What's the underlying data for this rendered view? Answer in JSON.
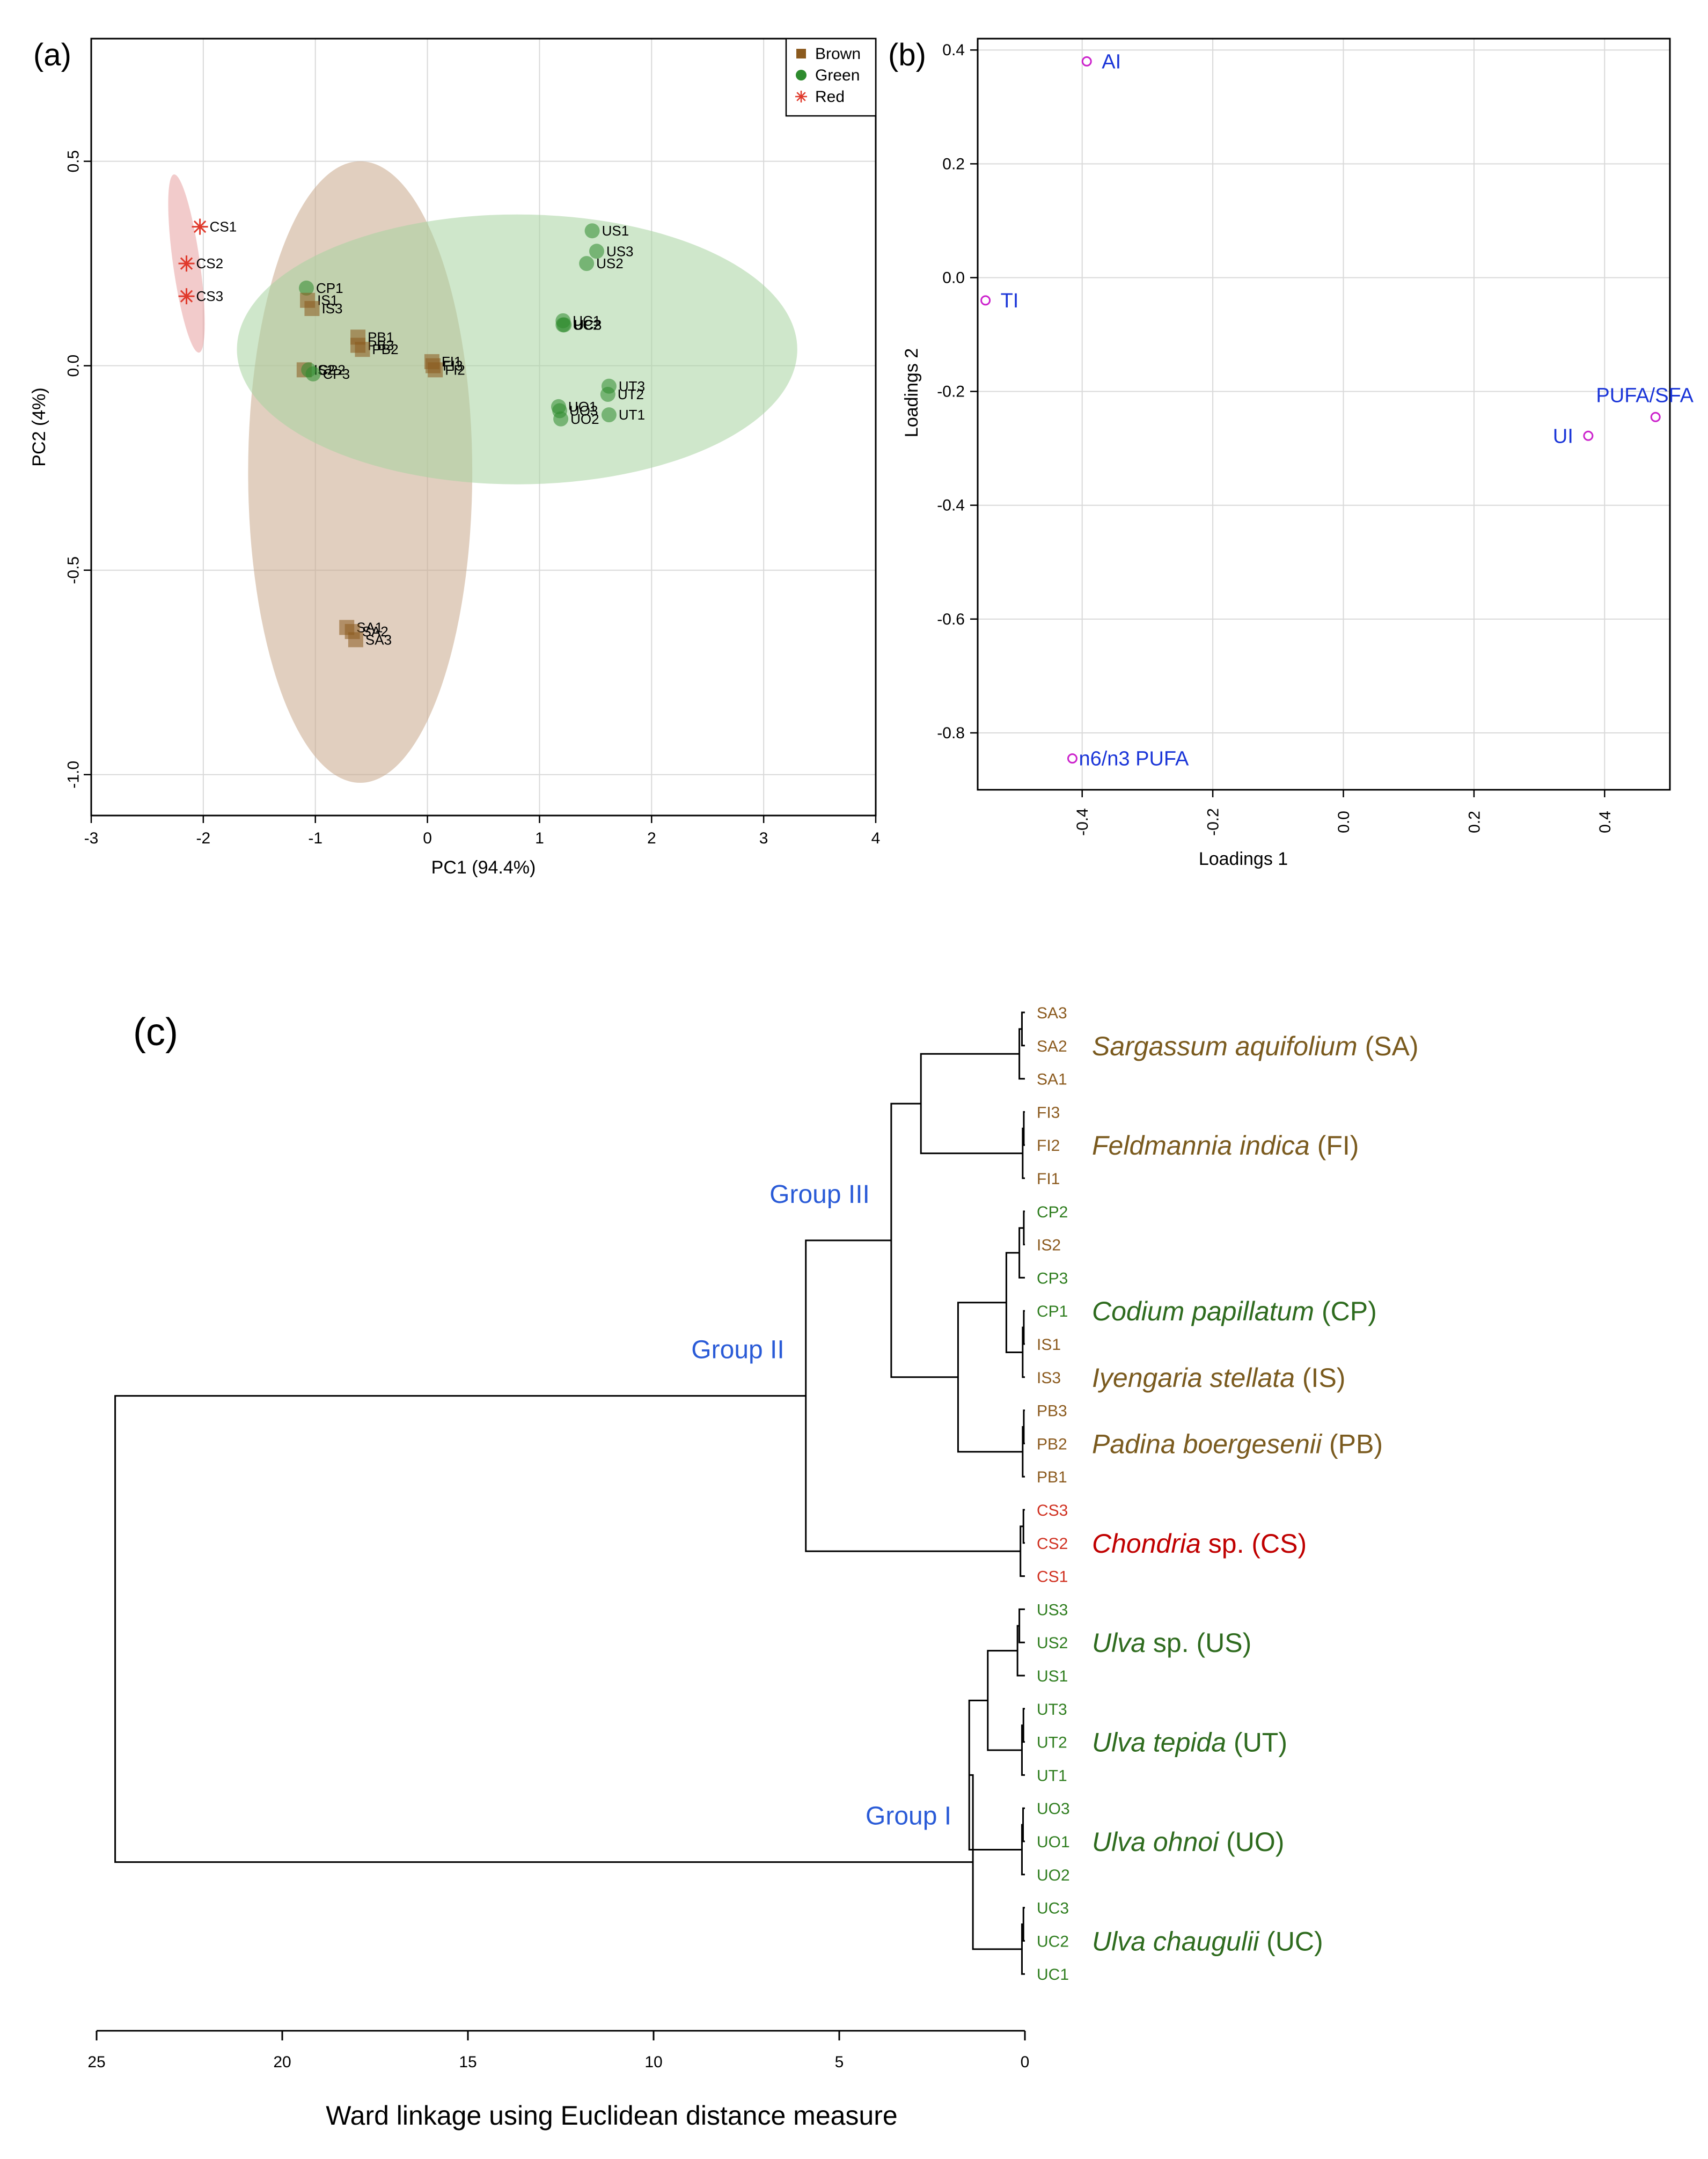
{
  "chart_data": [
    {
      "type": "scatter",
      "panel_label": "(a)",
      "xlabel": "PC1 (94.4%)",
      "ylabel": "PC2 (4%)",
      "xlim": [
        -3,
        4
      ],
      "ylim": [
        -1.1,
        0.8
      ],
      "xticks": [
        "-3",
        "-2",
        "-1",
        "0",
        "1",
        "2",
        "3",
        "4"
      ],
      "yticks": [
        "0.5",
        "0.0",
        "-0.5",
        "-1.0"
      ],
      "legend": {
        "position": "top-right",
        "entries": [
          {
            "name": "Brown",
            "color": "#8b5a1e",
            "marker": "square"
          },
          {
            "name": "Green",
            "color": "#2e8b2e",
            "marker": "circle"
          },
          {
            "name": "Red",
            "color": "#e03a2c",
            "marker": "asterisk"
          }
        ]
      },
      "ellipses": [
        {
          "group": "Red",
          "cx": -2.15,
          "cy": 0.25,
          "rx": 0.12,
          "ry": 0.22,
          "angle": -8,
          "color": "#e8a0a0"
        },
        {
          "group": "Brown",
          "cx": -0.6,
          "cy": -0.26,
          "rx": 1.0,
          "ry": 0.76,
          "angle": 0,
          "color": "#c9a88a"
        },
        {
          "group": "Green",
          "cx": 0.8,
          "cy": 0.04,
          "rx": 2.5,
          "ry": 0.33,
          "angle": 0,
          "color": "#a8d4a0"
        }
      ],
      "points": [
        {
          "label": "CS1",
          "x": -2.03,
          "y": 0.34,
          "group": "Red"
        },
        {
          "label": "CS2",
          "x": -2.15,
          "y": 0.25,
          "group": "Red"
        },
        {
          "label": "CS3",
          "x": -2.15,
          "y": 0.17,
          "group": "Red"
        },
        {
          "label": "CP1",
          "x": -1.08,
          "y": 0.19,
          "group": "Green"
        },
        {
          "label": "IS1",
          "x": -1.07,
          "y": 0.16,
          "group": "Brown"
        },
        {
          "label": "IS3",
          "x": -1.03,
          "y": 0.14,
          "group": "Brown"
        },
        {
          "label": "PB1",
          "x": -0.62,
          "y": 0.07,
          "group": "Brown"
        },
        {
          "label": "PB3",
          "x": -0.62,
          "y": 0.05,
          "group": "Brown"
        },
        {
          "label": "PB2",
          "x": -0.58,
          "y": 0.04,
          "group": "Brown"
        },
        {
          "label": "IS2",
          "x": -1.1,
          "y": -0.01,
          "group": "Brown"
        },
        {
          "label": "CP2",
          "x": -1.06,
          "y": -0.01,
          "group": "Green"
        },
        {
          "label": "CP3",
          "x": -1.02,
          "y": -0.02,
          "group": "Green"
        },
        {
          "label": "FI1",
          "x": 0.04,
          "y": 0.01,
          "group": "Brown"
        },
        {
          "label": "FI3",
          "x": 0.05,
          "y": 0.0,
          "group": "Brown"
        },
        {
          "label": "FI2",
          "x": 0.07,
          "y": -0.01,
          "group": "Brown"
        },
        {
          "label": "US1",
          "x": 1.47,
          "y": 0.33,
          "group": "Green"
        },
        {
          "label": "US3",
          "x": 1.51,
          "y": 0.28,
          "group": "Green"
        },
        {
          "label": "US2",
          "x": 1.42,
          "y": 0.25,
          "group": "Green"
        },
        {
          "label": "UC1",
          "x": 1.21,
          "y": 0.11,
          "group": "Green"
        },
        {
          "label": "UC2",
          "x": 1.21,
          "y": 0.1,
          "group": "Green"
        },
        {
          "label": "UC3",
          "x": 1.22,
          "y": 0.1,
          "group": "Green"
        },
        {
          "label": "UT3",
          "x": 1.62,
          "y": -0.05,
          "group": "Green"
        },
        {
          "label": "UT2",
          "x": 1.61,
          "y": -0.07,
          "group": "Green"
        },
        {
          "label": "UT1",
          "x": 1.62,
          "y": -0.12,
          "group": "Green"
        },
        {
          "label": "UO1",
          "x": 1.17,
          "y": -0.1,
          "group": "Green"
        },
        {
          "label": "UO3",
          "x": 1.18,
          "y": -0.11,
          "group": "Green"
        },
        {
          "label": "UO2",
          "x": 1.19,
          "y": -0.13,
          "group": "Green"
        },
        {
          "label": "SA1",
          "x": -0.72,
          "y": -0.64,
          "group": "Brown"
        },
        {
          "label": "SA2",
          "x": -0.67,
          "y": -0.65,
          "group": "Brown"
        },
        {
          "label": "SA3",
          "x": -0.64,
          "y": -0.67,
          "group": "Brown"
        }
      ]
    },
    {
      "type": "scatter",
      "panel_label": "(b)",
      "xlabel": "Loadings 1",
      "ylabel": "Loadings 2",
      "xlim": [
        -0.56,
        0.5
      ],
      "ylim": [
        -0.9,
        0.42
      ],
      "xticks": [
        "-0.4",
        "-0.2",
        "0.0",
        "0.2",
        "0.4"
      ],
      "yticks": [
        "0.4",
        "0.2",
        "0.0",
        "-0.2",
        "-0.4",
        "-0.6",
        "-0.8"
      ],
      "points": [
        {
          "label": "AI",
          "x": -0.393,
          "y": 0.38
        },
        {
          "label": "TI",
          "x": -0.548,
          "y": -0.04
        },
        {
          "label": "PUFA/SFA",
          "x": 0.478,
          "y": -0.245
        },
        {
          "label": "UI",
          "x": 0.375,
          "y": -0.278
        },
        {
          "label": "n6/n3 PUFA",
          "x": -0.415,
          "y": -0.845
        }
      ]
    },
    {
      "type": "dendrogram",
      "panel_label": "(c)",
      "xlabel": "Ward linkage using Euclidean distance measure",
      "xlim": [
        25,
        0
      ],
      "xticks": [
        "25",
        "20",
        "15",
        "10",
        "5",
        "0"
      ],
      "leaves": [
        {
          "label": "SA3",
          "group": "Brown"
        },
        {
          "label": "SA2",
          "group": "Brown"
        },
        {
          "label": "SA1",
          "group": "Brown"
        },
        {
          "label": "FI3",
          "group": "Brown"
        },
        {
          "label": "FI2",
          "group": "Brown"
        },
        {
          "label": "FI1",
          "group": "Brown"
        },
        {
          "label": "CP2",
          "group": "Green"
        },
        {
          "label": "IS2",
          "group": "Brown"
        },
        {
          "label": "CP3",
          "group": "Green"
        },
        {
          "label": "CP1",
          "group": "Green"
        },
        {
          "label": "IS1",
          "group": "Brown"
        },
        {
          "label": "IS3",
          "group": "Brown"
        },
        {
          "label": "PB3",
          "group": "Brown"
        },
        {
          "label": "PB2",
          "group": "Brown"
        },
        {
          "label": "PB1",
          "group": "Brown"
        },
        {
          "label": "CS3",
          "group": "Red"
        },
        {
          "label": "CS2",
          "group": "Red"
        },
        {
          "label": "CS1",
          "group": "Red"
        },
        {
          "label": "US3",
          "group": "Green"
        },
        {
          "label": "US2",
          "group": "Green"
        },
        {
          "label": "US1",
          "group": "Green"
        },
        {
          "label": "UT3",
          "group": "Green"
        },
        {
          "label": "UT2",
          "group": "Green"
        },
        {
          "label": "UT1",
          "group": "Green"
        },
        {
          "label": "UO3",
          "group": "Green"
        },
        {
          "label": "UO1",
          "group": "Green"
        },
        {
          "label": "UO2",
          "group": "Green"
        },
        {
          "label": "UC3",
          "group": "Green"
        },
        {
          "label": "UC2",
          "group": "Green"
        },
        {
          "label": "UC1",
          "group": "Green"
        }
      ],
      "merges": [
        {
          "a": 0,
          "b": 1,
          "h": 0.08
        },
        {
          "a": 30,
          "b": 2,
          "h": 0.15
        },
        {
          "a": 3,
          "b": 4,
          "h": 0.03
        },
        {
          "a": 32,
          "b": 5,
          "h": 0.06
        },
        {
          "a": 6,
          "b": 7,
          "h": 0.03
        },
        {
          "a": 34,
          "b": 8,
          "h": 0.15
        },
        {
          "a": 9,
          "b": 10,
          "h": 0.03
        },
        {
          "a": 36,
          "b": 11,
          "h": 0.06
        },
        {
          "a": 12,
          "b": 13,
          "h": 0.03
        },
        {
          "a": 38,
          "b": 14,
          "h": 0.06
        },
        {
          "a": 15,
          "b": 16,
          "h": 0.04
        },
        {
          "a": 40,
          "b": 17,
          "h": 0.12
        },
        {
          "a": 18,
          "b": 19,
          "h": 0.15
        },
        {
          "a": 42,
          "b": 20,
          "h": 0.2
        },
        {
          "a": 21,
          "b": 22,
          "h": 0.04
        },
        {
          "a": 44,
          "b": 23,
          "h": 0.08
        },
        {
          "a": 24,
          "b": 25,
          "h": 0.05
        },
        {
          "a": 46,
          "b": 26,
          "h": 0.08
        },
        {
          "a": 27,
          "b": 28,
          "h": 0.04
        },
        {
          "a": 48,
          "b": 29,
          "h": 0.08
        },
        {
          "a": 35,
          "b": 37,
          "h": 0.5
        },
        {
          "a": 31,
          "b": 33,
          "h": 2.8
        },
        {
          "a": 50,
          "b": 39,
          "h": 1.8
        },
        {
          "a": 51,
          "b": 52,
          "h": 3.6
        },
        {
          "a": 53,
          "b": 41,
          "h": 5.9
        },
        {
          "a": 43,
          "b": 45,
          "h": 1.0
        },
        {
          "a": 55,
          "b": 47,
          "h": 1.5
        },
        {
          "a": 56,
          "b": 49,
          "h": 1.4
        },
        {
          "a": 54,
          "b": 57,
          "h": 24.5
        }
      ],
      "species_labels": [
        {
          "italic": "Sargassum aquifolium",
          "plain": " (SA)",
          "color": "#7a5a1e",
          "at_leaf": 1
        },
        {
          "italic": "Feldmannia indica",
          "plain": " (FI)",
          "color": "#7a5a1e",
          "at_leaf": 4
        },
        {
          "italic": "Codium papillatum",
          "plain": " (CP)",
          "color": "#2e6b1e",
          "at_leaf": 9
        },
        {
          "italic": "Iyengaria stellata",
          "plain": " (IS)",
          "color": "#7a5a1e",
          "at_leaf": 11
        },
        {
          "italic": "Padina boergesenii",
          "plain": " (PB)",
          "color": "#7a5a1e",
          "at_leaf": 13
        },
        {
          "italic": "Chondria",
          "plain": " sp. (CS)",
          "color": "#c00000",
          "at_leaf": 16
        },
        {
          "italic": "Ulva",
          "plain": " sp. (US)",
          "color": "#2e6b1e",
          "at_leaf": 19
        },
        {
          "italic": "Ulva tepida",
          "plain": " (UT)",
          "color": "#2e6b1e",
          "at_leaf": 22
        },
        {
          "italic": "Ulva ohnoi",
          "plain": " (UO)",
          "color": "#2e6b1e",
          "at_leaf": 25
        },
        {
          "italic": "Ulva chaugulii",
          "plain": "  (UC)",
          "color": "#2e6b1e",
          "at_leaf": 28
        }
      ],
      "group_labels": [
        {
          "label": "Group III",
          "node": 53
        },
        {
          "label": "Group II",
          "node": 54
        },
        {
          "label": "Group I",
          "node": 57
        }
      ]
    }
  ]
}
